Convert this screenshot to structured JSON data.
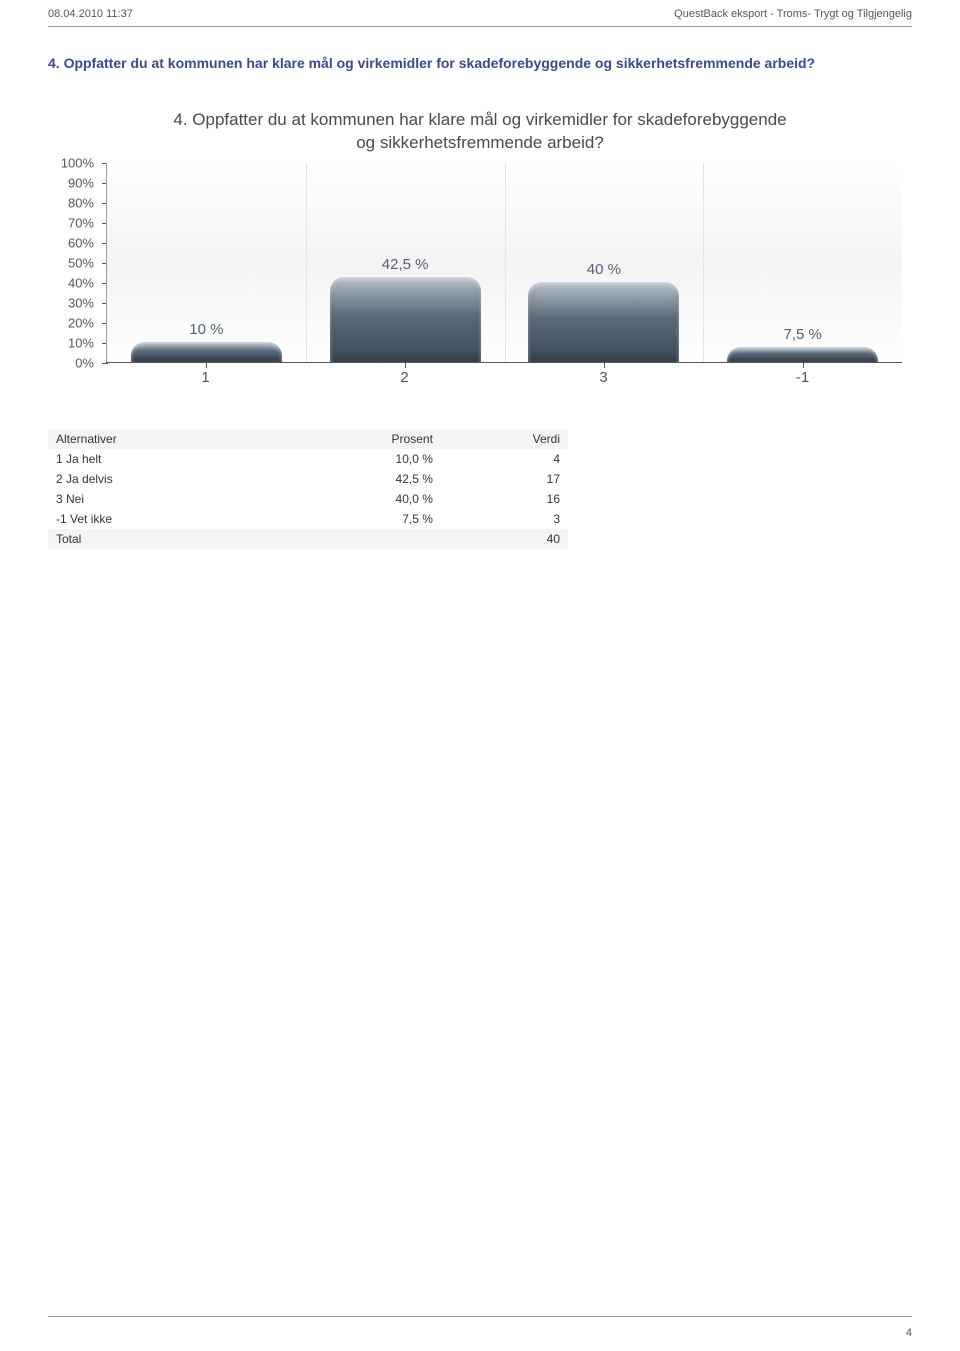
{
  "header": {
    "timestamp": "08.04.2010 11:37",
    "export_label": "QuestBack eksport - Troms- Trygt og Tilgjengelig"
  },
  "question": {
    "title": "4. Oppfatter du at kommunen har klare mål og virkemidler for skadeforebyggende og sikkerhetsfremmende arbeid?"
  },
  "chart": {
    "type": "bar",
    "title_line1": "4. Oppfatter du at kommunen har klare mål og virkemidler for skadeforebyggende",
    "title_line2": "og sikkerhetsfremmende arbeid?",
    "title_fontsize": 17,
    "title_color": "#4a4a4a",
    "ylim": [
      0,
      100
    ],
    "ytick_step": 10,
    "yticks": [
      "0%",
      "10%",
      "20%",
      "30%",
      "40%",
      "50%",
      "60%",
      "70%",
      "80%",
      "90%",
      "100%"
    ],
    "bar_gradient_top": "#b8c2cc",
    "bar_gradient_mid": "#5a6b7a",
    "bar_gradient_bottom": "#3a4a58",
    "plot_bg": "#ffffff",
    "grid_color": "#e4e4e4",
    "axis_color": "#555555",
    "label_color": "#556070",
    "label_fontsize": 15,
    "categories": [
      "1",
      "2",
      "3",
      "-1"
    ],
    "values": [
      10,
      42.5,
      40,
      7.5
    ],
    "value_labels": [
      "10 %",
      "42,5 %",
      "40 %",
      "7,5 %"
    ]
  },
  "table": {
    "columns": [
      "Alternativer",
      "Prosent",
      "Verdi"
    ],
    "rows": [
      {
        "alt": "1 Ja helt",
        "pct": "10,0 %",
        "val": "4"
      },
      {
        "alt": "2 Ja delvis",
        "pct": "42,5 %",
        "val": "17"
      },
      {
        "alt": "3 Nei",
        "pct": "40,0 %",
        "val": "16"
      },
      {
        "alt": "-1 Vet ikke",
        "pct": "7,5 %",
        "val": "3"
      }
    ],
    "total_label": "Total",
    "total_val": "40"
  },
  "footer": {
    "page_number": "4"
  }
}
